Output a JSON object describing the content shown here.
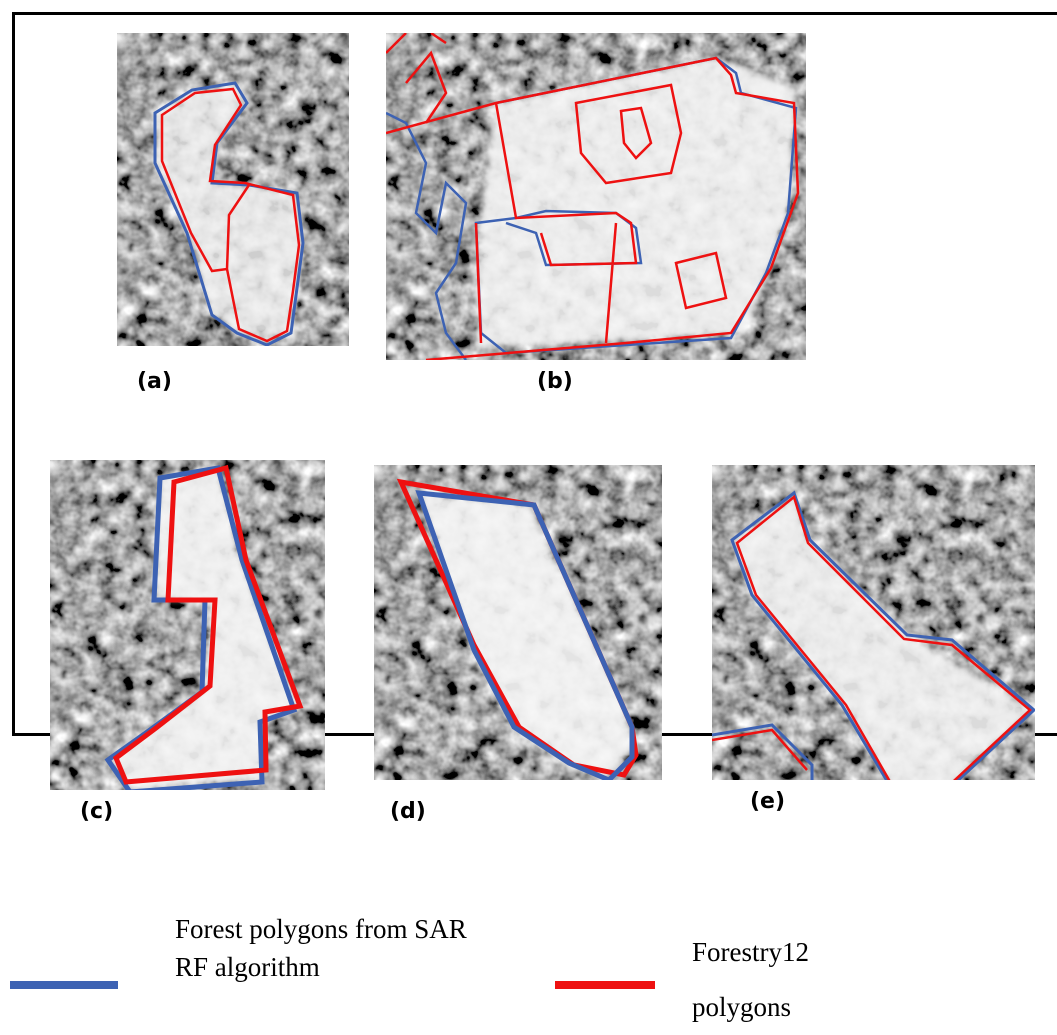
{
  "panels": [
    {
      "label": "(a)"
    },
    {
      "label": "(b)"
    },
    {
      "label": "(c)"
    },
    {
      "label": "(d)"
    },
    {
      "label": "(e)"
    }
  ],
  "legend": [
    {
      "text": "Forest polygons from SAR RF algorithm",
      "color": "#3d62b3"
    },
    {
      "text": "Forestry12 polygons",
      "color": "#ee1111"
    }
  ]
}
